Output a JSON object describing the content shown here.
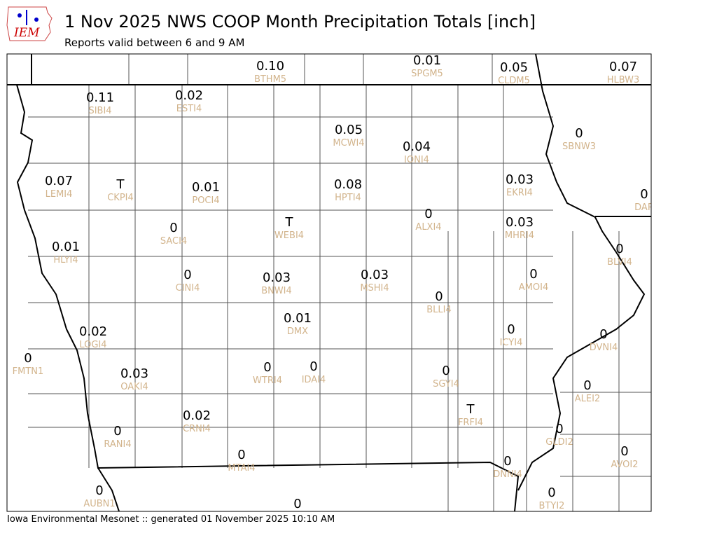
{
  "header": {
    "title": "1 Nov 2025 NWS COOP Month Precipitation Totals [inch]",
    "subtitle": "Reports valid between 6 and 9 AM",
    "logo_text": "IEM"
  },
  "footer": {
    "text": "Iowa Environmental Mesonet :: generated 01 November 2025 10:10 AM"
  },
  "colors": {
    "station_label": "#d2b48c",
    "value": "#000000",
    "county_line": "#555555",
    "state_line": "#000000"
  },
  "stations": [
    {
      "id": "BTHM5",
      "value": "0.10"
    },
    {
      "id": "SPGM5",
      "value": "0.01"
    },
    {
      "id": "CLDM5",
      "value": "0.05"
    },
    {
      "id": "HLBW3",
      "value": "0.07"
    },
    {
      "id": "SIBI4",
      "value": "0.11"
    },
    {
      "id": "ESTI4",
      "value": "0.02"
    },
    {
      "id": "MCWI4",
      "value": "0.05"
    },
    {
      "id": "IONI4",
      "value": "0.04"
    },
    {
      "id": "SBNW3",
      "value": "0"
    },
    {
      "id": "LEMI4",
      "value": "0.07"
    },
    {
      "id": "CKPI4",
      "value": "T"
    },
    {
      "id": "POCI4",
      "value": "0.01"
    },
    {
      "id": "HPTI4",
      "value": "0.08"
    },
    {
      "id": "EKRI4",
      "value": "0.03"
    },
    {
      "id": "DAR",
      "value": "0"
    },
    {
      "id": "ALXI4",
      "value": "0"
    },
    {
      "id": "MHRI4",
      "value": "0.03"
    },
    {
      "id": "SACI4",
      "value": "0"
    },
    {
      "id": "WEBI4",
      "value": "T"
    },
    {
      "id": "HLYI4",
      "value": "0.01"
    },
    {
      "id": "BLVI4",
      "value": "0"
    },
    {
      "id": "CINI4",
      "value": "0"
    },
    {
      "id": "BNWI4",
      "value": "0.03"
    },
    {
      "id": "MSHI4",
      "value": "0.03"
    },
    {
      "id": "AMOI4",
      "value": "0"
    },
    {
      "id": "BLLI4",
      "value": "0"
    },
    {
      "id": "DMX",
      "value": "0.01"
    },
    {
      "id": "LOGI4",
      "value": "0.02"
    },
    {
      "id": "ICYI4",
      "value": "0"
    },
    {
      "id": "DVNI4",
      "value": "0"
    },
    {
      "id": "FMTN1",
      "value": "0"
    },
    {
      "id": "OAKI4",
      "value": "0.03"
    },
    {
      "id": "WTRI4",
      "value": "0"
    },
    {
      "id": "IDAI4",
      "value": "0"
    },
    {
      "id": "SGYI4",
      "value": "0"
    },
    {
      "id": "ALEI2",
      "value": "0"
    },
    {
      "id": "FRFI4",
      "value": "T"
    },
    {
      "id": "CRNI4",
      "value": "0.02"
    },
    {
      "id": "RANI4",
      "value": "0"
    },
    {
      "id": "GLDI2",
      "value": "0"
    },
    {
      "id": "AVOI2",
      "value": "0"
    },
    {
      "id": "MTAI4",
      "value": "0"
    },
    {
      "id": "DNNI4",
      "value": "0"
    },
    {
      "id": "AUBN1",
      "value": "0"
    },
    {
      "id": "BTYI2",
      "value": "0"
    },
    {
      "id": "",
      "value": "0"
    }
  ]
}
